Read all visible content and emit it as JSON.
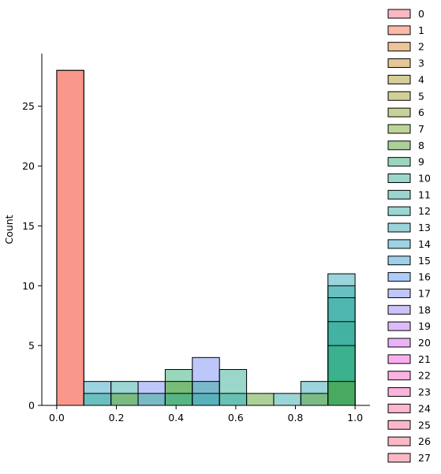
{
  "chart_data": {
    "type": "histogram",
    "title": "",
    "xlabel": "",
    "ylabel": "Count",
    "xlim": [
      -0.05,
      1.05
    ],
    "ylim": [
      0,
      29.4
    ],
    "xticks": [
      0.0,
      0.2,
      0.4,
      0.6,
      0.8,
      1.0
    ],
    "xtick_labels": [
      "0.0",
      "0.2",
      "0.4",
      "0.6",
      "0.8",
      "1.0"
    ],
    "yticks": [
      0,
      5,
      10,
      15,
      20,
      25
    ],
    "ytick_labels": [
      "0",
      "5",
      "10",
      "15",
      "20",
      "25"
    ],
    "bin_edges": [
      0.0,
      0.0909,
      0.1818,
      0.2727,
      0.3636,
      0.4545,
      0.5455,
      0.6364,
      0.7273,
      0.8182,
      0.9091,
      1.0
    ],
    "grid": false,
    "legend_position": "right-outside",
    "legend_labels": [
      "0",
      "1",
      "2",
      "3",
      "4",
      "5",
      "6",
      "7",
      "8",
      "9",
      "10",
      "11",
      "12",
      "13",
      "14",
      "15",
      "16",
      "17",
      "18",
      "19",
      "20",
      "21",
      "22",
      "23",
      "24",
      "25",
      "26",
      "27"
    ],
    "colors": [
      "#f77189",
      "#f7754f",
      "#dc8932",
      "#ca9032",
      "#ae9d31",
      "#a1a031",
      "#8ea531",
      "#77ab31",
      "#5aa131",
      "#33b07a",
      "#35ae93",
      "#36ac9e",
      "#37abaa",
      "#38a9b5",
      "#3aa6c4",
      "#3ca3d4",
      "#5a9af6",
      "#7d8ff6",
      "#9f86f5",
      "#bb78f4",
      "#d668f3",
      "#f35fdd",
      "#f565c7",
      "#f569b8",
      "#f76ea1",
      "#f76f94",
      "#f77189",
      "#f77189"
    ],
    "bars": [
      {
        "bin": 0,
        "series": 0,
        "value": 28
      },
      {
        "bin": 0,
        "series": 1,
        "value": 28
      },
      {
        "bin": 1,
        "series": 14,
        "value": 2
      },
      {
        "bin": 1,
        "series": 11,
        "value": 1
      },
      {
        "bin": 2,
        "series": 12,
        "value": 2
      },
      {
        "bin": 2,
        "series": 8,
        "value": 1
      },
      {
        "bin": 3,
        "series": 17,
        "value": 2
      },
      {
        "bin": 3,
        "series": 10,
        "value": 1
      },
      {
        "bin": 4,
        "series": 9,
        "value": 3
      },
      {
        "bin": 4,
        "series": 8,
        "value": 2
      },
      {
        "bin": 4,
        "series": 10,
        "value": 1
      },
      {
        "bin": 5,
        "series": 17,
        "value": 4
      },
      {
        "bin": 5,
        "series": 11,
        "value": 2
      },
      {
        "bin": 5,
        "series": 12,
        "value": 1
      },
      {
        "bin": 6,
        "series": 10,
        "value": 3
      },
      {
        "bin": 6,
        "series": 11,
        "value": 1
      },
      {
        "bin": 7,
        "series": 8,
        "value": 1
      },
      {
        "bin": 8,
        "series": 12,
        "value": 1
      },
      {
        "bin": 9,
        "series": 13,
        "value": 2
      },
      {
        "bin": 9,
        "series": 8,
        "value": 1
      },
      {
        "bin": 10,
        "series": 13,
        "value": 11
      },
      {
        "bin": 10,
        "series": 12,
        "value": 10
      },
      {
        "bin": 10,
        "series": 11,
        "value": 9
      },
      {
        "bin": 10,
        "series": 10,
        "value": 7
      },
      {
        "bin": 10,
        "series": 9,
        "value": 5
      },
      {
        "bin": 10,
        "series": 8,
        "value": 2
      }
    ]
  }
}
